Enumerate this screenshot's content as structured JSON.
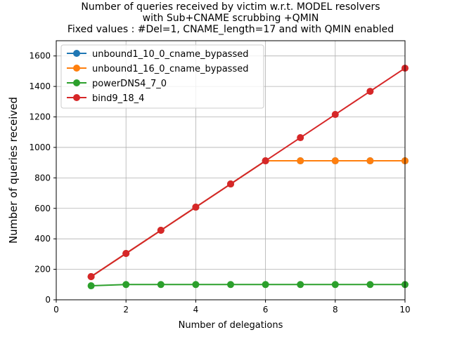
{
  "chart_data": {
    "type": "line",
    "title_lines": [
      "Number of queries received by victim w.r.t. MODEL resolvers",
      "with Sub+CNAME scrubbing +QMIN",
      "Fixed values : #Del=1, CNAME_length=17 and  with QMIN enabled"
    ],
    "xlabel": "Number of delegations",
    "ylabel": "Number of queries received",
    "xlim": [
      0,
      10
    ],
    "ylim": [
      0,
      1700
    ],
    "xticks": [
      0,
      2,
      4,
      6,
      8,
      10
    ],
    "yticks": [
      0,
      200,
      400,
      600,
      800,
      1000,
      1200,
      1400,
      1600
    ],
    "grid": true,
    "legend_position": "top-left",
    "x": [
      1,
      2,
      3,
      4,
      5,
      6,
      7,
      8,
      9,
      10
    ],
    "series": [
      {
        "name": "unbound1_10_0_cname_bypassed",
        "color": "#1f77b4",
        "values": [
          152,
          304,
          456,
          608,
          760,
          912,
          912,
          912,
          912,
          912
        ]
      },
      {
        "name": "unbound1_16_0_cname_bypassed",
        "color": "#ff7f0e",
        "values": [
          152,
          304,
          456,
          608,
          760,
          912,
          912,
          912,
          912,
          912
        ]
      },
      {
        "name": "powerDNS4_7_0",
        "color": "#2ca02c",
        "values": [
          92,
          100,
          100,
          100,
          100,
          100,
          100,
          100,
          100,
          100
        ]
      },
      {
        "name": "bind9_18_4",
        "color": "#d62728",
        "values": [
          152,
          304,
          456,
          608,
          760,
          912,
          1064,
          1216,
          1368,
          1520
        ]
      }
    ]
  }
}
